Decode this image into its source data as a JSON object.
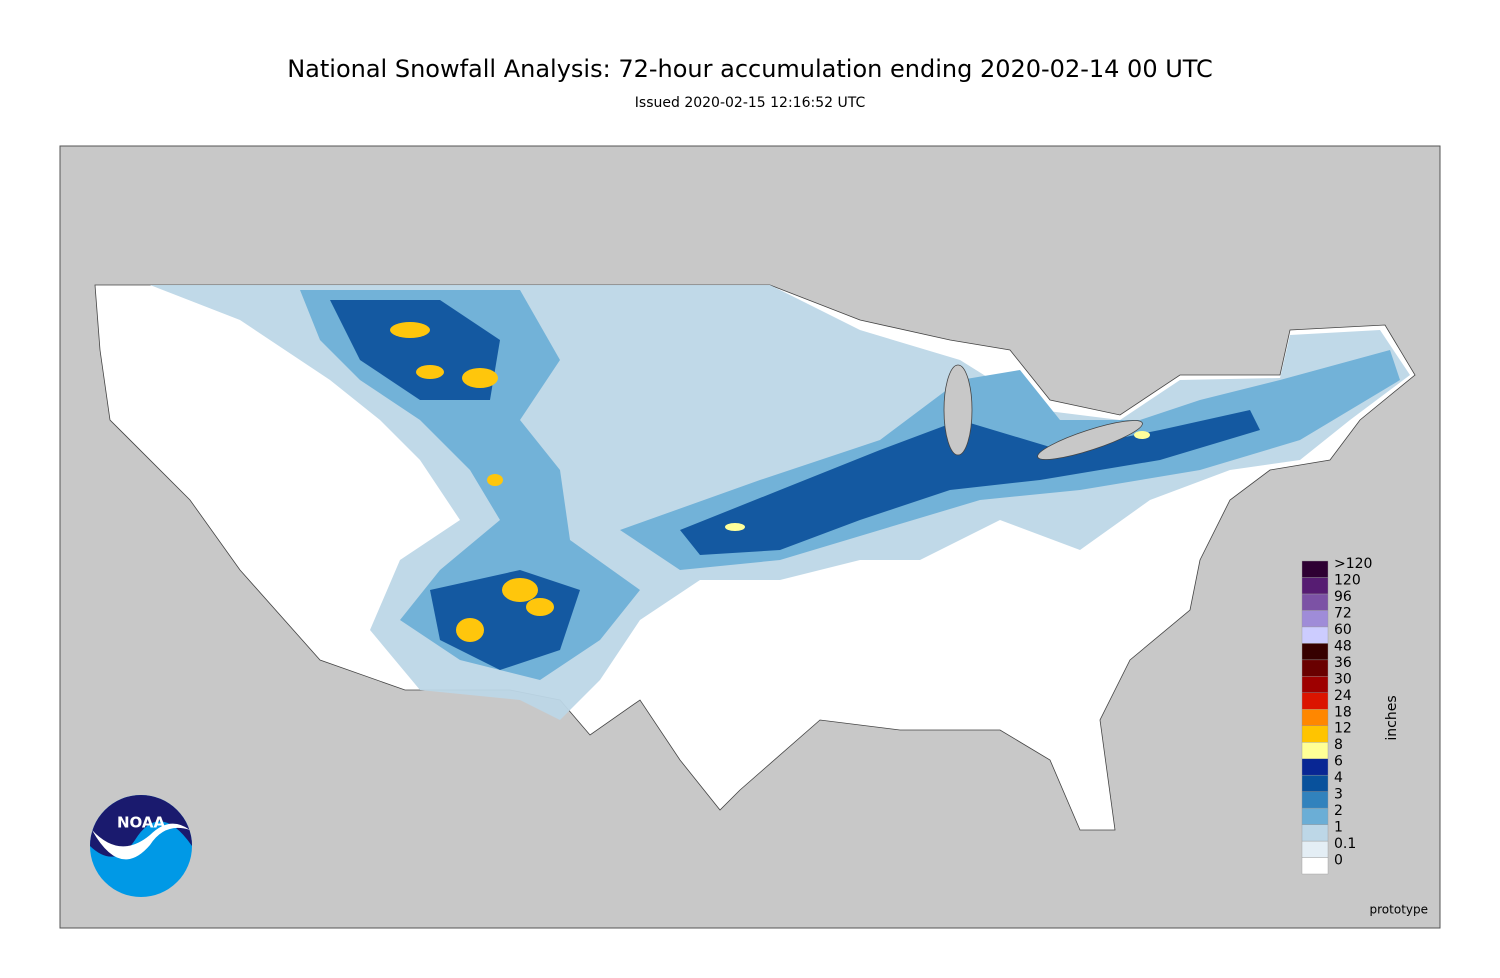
{
  "header": {
    "title": "National Snowfall Analysis: 72-hour accumulation ending 2020-02-14 00 UTC",
    "subtitle": "Issued 2020-02-15 12:16:52 UTC"
  },
  "legend": {
    "unit": "inches",
    "items": [
      {
        "label": "0",
        "color": "#ffffff"
      },
      {
        "label": "0.1",
        "color": "#e4eef5"
      },
      {
        "label": "1",
        "color": "#bdd7e7"
      },
      {
        "label": "2",
        "color": "#6baed6"
      },
      {
        "label": "3",
        "color": "#3182bd"
      },
      {
        "label": "4",
        "color": "#08519c"
      },
      {
        "label": "6",
        "color": "#082694"
      },
      {
        "label": "8",
        "color": "#ffff96"
      },
      {
        "label": "12",
        "color": "#ffc400"
      },
      {
        "label": "18",
        "color": "#ff8700"
      },
      {
        "label": "24",
        "color": "#db1400"
      },
      {
        "label": "30",
        "color": "#9e0000"
      },
      {
        "label": "36",
        "color": "#690000"
      },
      {
        "label": "48",
        "color": "#360000"
      },
      {
        "label": "60",
        "color": "#ccccff"
      },
      {
        "label": "72",
        "color": "#9f8cd8"
      },
      {
        "label": "96",
        "color": "#7c52a5"
      },
      {
        "label": "120",
        "color": "#561c72"
      },
      {
        "label": ">120",
        "color": "#2e0033"
      }
    ]
  },
  "footer": {
    "note": "prototype",
    "logo": "NOAA"
  }
}
